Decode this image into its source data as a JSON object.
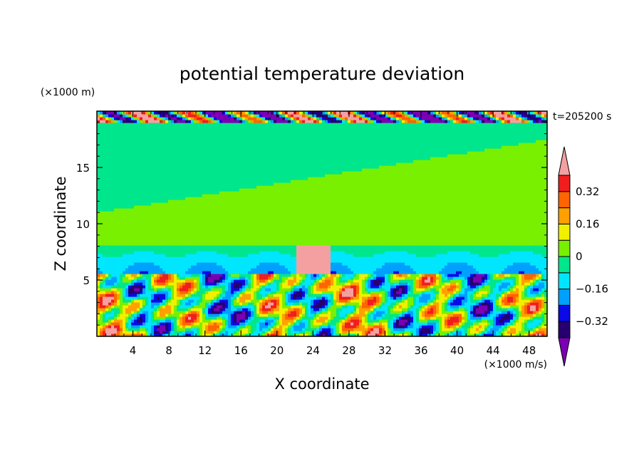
{
  "chart_data": {
    "type": "heatmap",
    "title": "potential temperature deviation",
    "time_label": "t=205200 s",
    "xlabel": "X coordinate",
    "ylabel": "Z coordinate",
    "x_unit": "(×1000 m/s)",
    "y_unit": "(×1000 m)",
    "xlim": [
      0,
      50
    ],
    "ylim": [
      0,
      20
    ],
    "x_ticks": [
      4,
      8,
      12,
      16,
      20,
      24,
      28,
      32,
      36,
      40,
      44,
      48
    ],
    "y_ticks": [
      5,
      10,
      15
    ],
    "grid": false,
    "colorbar": {
      "levels": [
        -0.4,
        -0.32,
        -0.24,
        -0.16,
        -0.08,
        0,
        0.08,
        0.16,
        0.24,
        0.32,
        0.4
      ],
      "labels": [
        "0.32",
        "0.16",
        "0",
        "−0.16",
        "−0.32"
      ],
      "label_values": [
        0.32,
        0.16,
        0,
        -0.16,
        -0.32
      ],
      "colors": [
        "#7b00b4",
        "#27006f",
        "#0a0ae6",
        "#00a0ff",
        "#00e6ff",
        "#00e68c",
        "#78f000",
        "#f0f000",
        "#ffa000",
        "#ff6400",
        "#f01e1e",
        "#f5a0a0"
      ],
      "extend": "both"
    },
    "features": {
      "upper_layer_z": [
        8,
        19
      ],
      "lower_layer_z": [
        0,
        5.5
      ],
      "anomaly_upper_x": [
        22,
        26
      ],
      "anomaly_upper_z": [
        5.5,
        8
      ]
    }
  }
}
